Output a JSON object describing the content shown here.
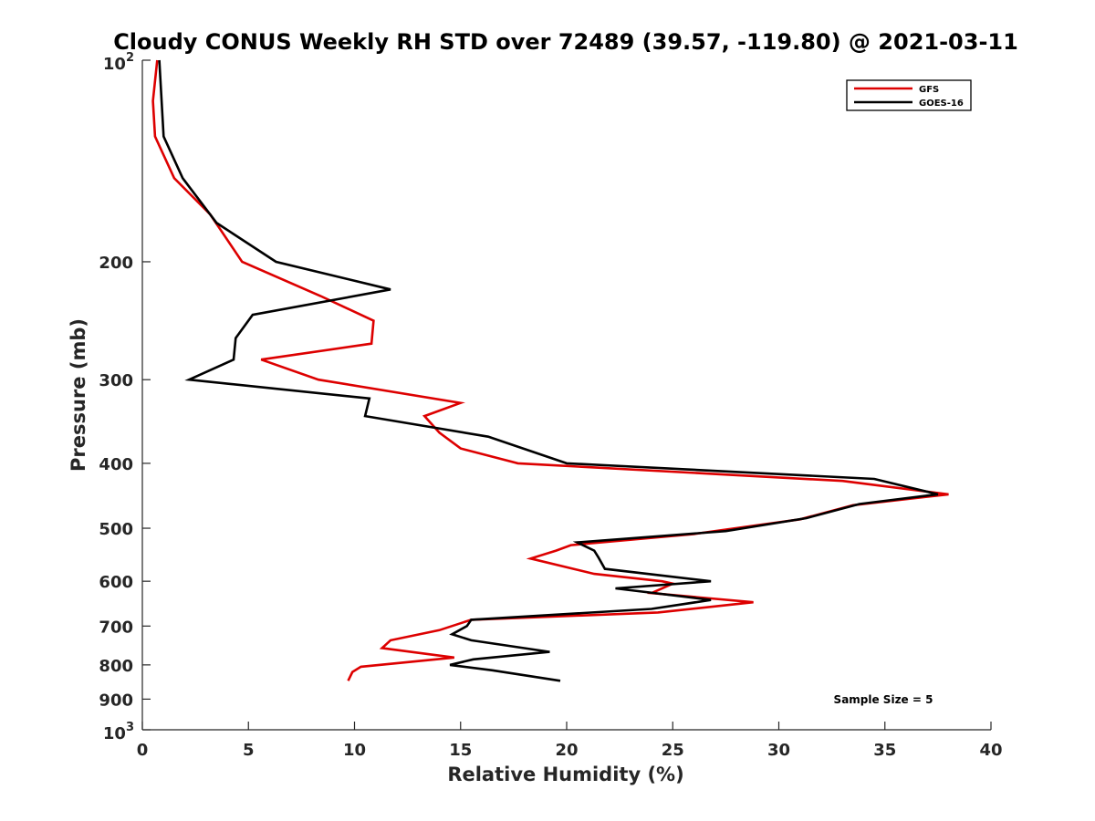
{
  "chart_data": {
    "type": "line",
    "title": "Cloudy CONUS Weekly RH STD over 72489 (39.57, -119.80) @ 2021-03-11",
    "xlabel": "Relative Humidity (%)",
    "ylabel": "Pressure (mb)",
    "xlim": [
      0,
      40
    ],
    "ylim": [
      100,
      1000
    ],
    "y_scale": "log",
    "y_reversed": true,
    "grid": false,
    "legend_position": "top-right",
    "x_ticks": [
      0,
      5,
      10,
      15,
      20,
      25,
      30,
      35,
      40
    ],
    "x_tick_labels": [
      "0",
      "5",
      "10",
      "15",
      "20",
      "25",
      "30",
      "35",
      "40"
    ],
    "y_ticks": [
      200,
      300,
      400,
      500,
      600,
      700,
      800,
      900
    ],
    "y_tick_labels": [
      "200",
      "300",
      "400",
      "500",
      "600",
      "700",
      "800",
      "900"
    ],
    "y_decade_labels": [
      {
        "value": 100,
        "base": "10",
        "exp": "2"
      },
      {
        "value": 1000,
        "base": "10",
        "exp": "3"
      }
    ],
    "annotation": "Sample Size = 5",
    "series": [
      {
        "name": "GFS",
        "color": "#dd0000",
        "points": [
          [
            0.7,
            100
          ],
          [
            0.5,
            115
          ],
          [
            0.6,
            130
          ],
          [
            1.5,
            150
          ],
          [
            3.2,
            170
          ],
          [
            4.7,
            200
          ],
          [
            8.4,
            225
          ],
          [
            10.9,
            245
          ],
          [
            10.8,
            265
          ],
          [
            5.6,
            280
          ],
          [
            8.3,
            300
          ],
          [
            15.0,
            325
          ],
          [
            13.3,
            340
          ],
          [
            14.0,
            360
          ],
          [
            15.0,
            380
          ],
          [
            17.7,
            400
          ],
          [
            33.0,
            425
          ],
          [
            38.0,
            445
          ],
          [
            33.5,
            462
          ],
          [
            31.0,
            485
          ],
          [
            26.0,
            510
          ],
          [
            20.2,
            530
          ],
          [
            19.5,
            540
          ],
          [
            18.3,
            555
          ],
          [
            21.3,
            585
          ],
          [
            24.5,
            600
          ],
          [
            25.0,
            605
          ],
          [
            24.0,
            625
          ],
          [
            28.8,
            645
          ],
          [
            24.3,
            668
          ],
          [
            15.5,
            685
          ],
          [
            14.0,
            710
          ],
          [
            11.7,
            735
          ],
          [
            11.3,
            755
          ],
          [
            14.7,
            780
          ],
          [
            10.3,
            805
          ],
          [
            9.9,
            820
          ],
          [
            9.7,
            845
          ]
        ]
      },
      {
        "name": "GOES-16",
        "color": "#000000",
        "points": [
          [
            0.8,
            100
          ],
          [
            1.0,
            130
          ],
          [
            1.9,
            150
          ],
          [
            3.5,
            175
          ],
          [
            6.3,
            200
          ],
          [
            11.7,
            220
          ],
          [
            5.2,
            240
          ],
          [
            4.4,
            260
          ],
          [
            4.3,
            280
          ],
          [
            2.2,
            300
          ],
          [
            10.7,
            320
          ],
          [
            10.5,
            340
          ],
          [
            16.3,
            365
          ],
          [
            20.0,
            400
          ],
          [
            34.5,
            422
          ],
          [
            37.5,
            445
          ],
          [
            33.8,
            460
          ],
          [
            31.3,
            483
          ],
          [
            27.5,
            505
          ],
          [
            20.5,
            525
          ],
          [
            21.3,
            540
          ],
          [
            21.5,
            553
          ],
          [
            21.8,
            575
          ],
          [
            26.8,
            600
          ],
          [
            22.3,
            615
          ],
          [
            26.8,
            640
          ],
          [
            24.0,
            660
          ],
          [
            15.5,
            685
          ],
          [
            15.3,
            700
          ],
          [
            14.6,
            720
          ],
          [
            15.5,
            735
          ],
          [
            19.2,
            765
          ],
          [
            15.6,
            785
          ],
          [
            14.5,
            800
          ],
          [
            16.5,
            815
          ],
          [
            19.7,
            845
          ]
        ]
      }
    ]
  }
}
